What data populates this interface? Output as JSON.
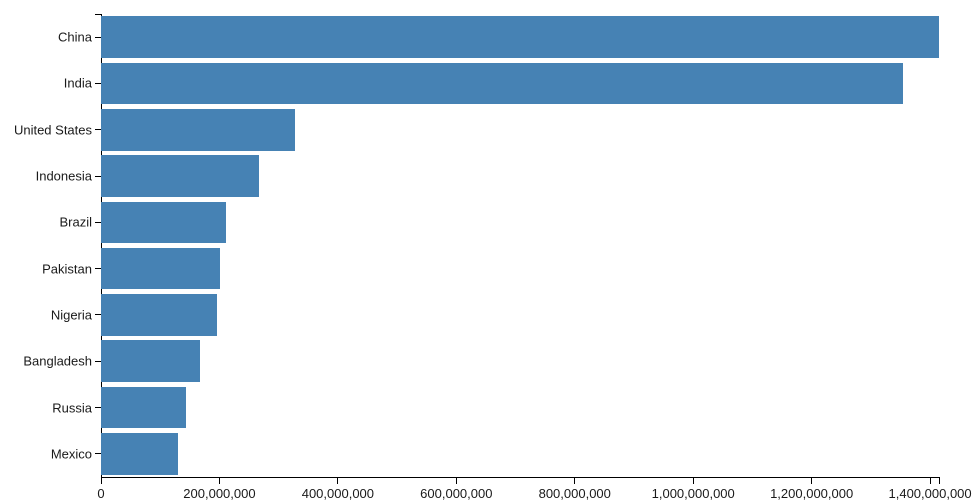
{
  "chart_data": {
    "type": "bar",
    "orientation": "horizontal",
    "title": "",
    "xlabel": "",
    "ylabel": "",
    "categories": [
      "China",
      "India",
      "United States",
      "Indonesia",
      "Brazil",
      "Pakistan",
      "Nigeria",
      "Bangladesh",
      "Russia",
      "Mexico"
    ],
    "values": [
      1415045928,
      1354051854,
      326766748,
      266794980,
      210867954,
      200813818,
      195875237,
      166368149,
      143964709,
      130759074
    ],
    "xlim": [
      0,
      1415045928
    ],
    "x_ticks": [
      0,
      200000000,
      400000000,
      600000000,
      800000000,
      1000000000,
      1200000000,
      1400000000
    ],
    "x_tick_labels": [
      "0",
      "200,000,000",
      "400,000,000",
      "600,000,000",
      "800,000,000",
      "1,000,000,000",
      "1,200,000,000",
      "1,400,000,000"
    ],
    "grid": false,
    "legend": false,
    "bar_color": "#4682b4",
    "axis_color": "#000000",
    "text_color": "#1a1a1a",
    "background_color": "#ffffff"
  }
}
